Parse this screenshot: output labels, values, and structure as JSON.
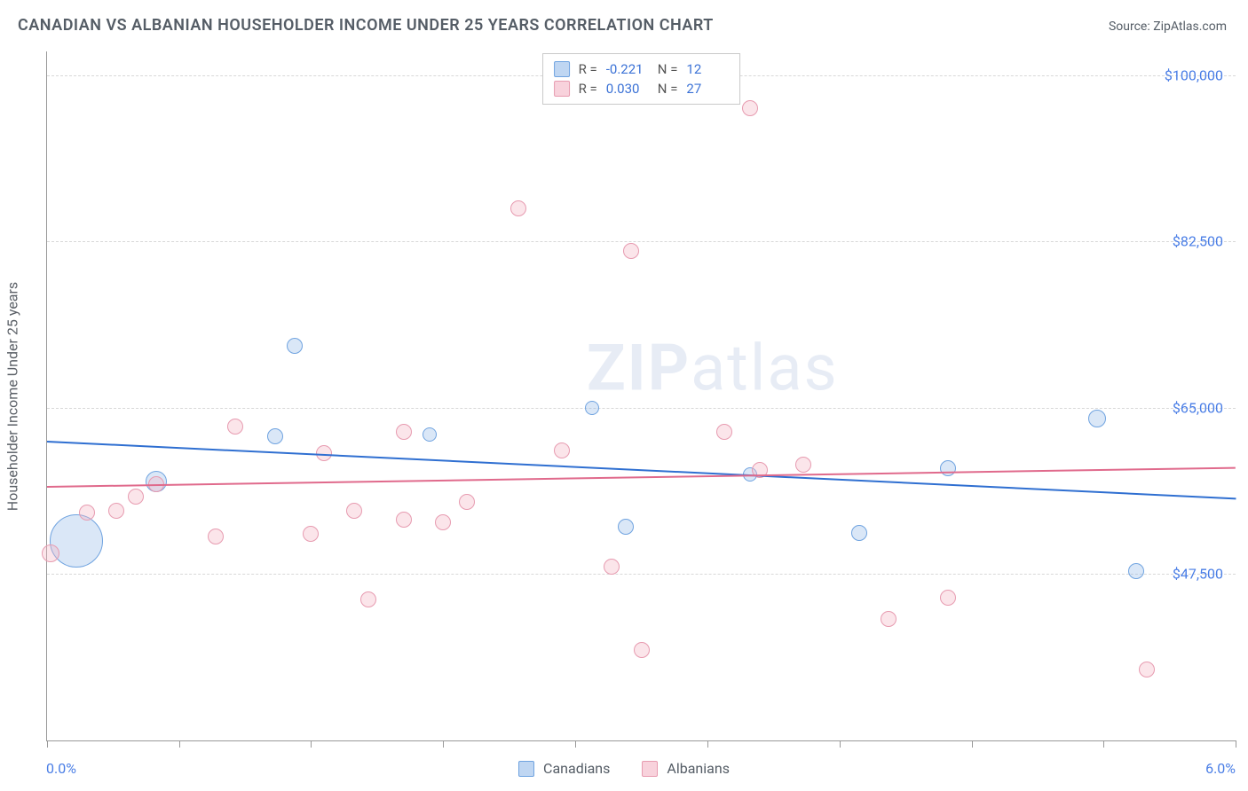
{
  "header": {
    "title": "CANADIAN VS ALBANIAN HOUSEHOLDER INCOME UNDER 25 YEARS CORRELATION CHART",
    "source": "Source: ZipAtlas.com"
  },
  "chart": {
    "type": "scatter",
    "ylabel": "Householder Income Under 25 years",
    "xlim": [
      0.0,
      6.0
    ],
    "ylim": [
      30000,
      102500
    ],
    "x_tick_labels": {
      "min": "0.0%",
      "max": "6.0%"
    },
    "x_ticks_pct": [
      0.0,
      0.667,
      1.333,
      2.0,
      2.667,
      3.333,
      4.0,
      4.667,
      5.333,
      6.0
    ],
    "y_grid": [
      {
        "value": 47500,
        "label": "$47,500"
      },
      {
        "value": 65000,
        "label": "$65,000"
      },
      {
        "value": 82500,
        "label": "$82,500"
      },
      {
        "value": 100000,
        "label": "$100,000"
      }
    ],
    "background_color": "#ffffff",
    "grid_color": "#d8d8d8",
    "axis_color": "#999999",
    "text_color": "#555d66",
    "value_color": "#4a7ee6",
    "watermark": {
      "strong": "ZIP",
      "rest": "atlas"
    },
    "series": [
      {
        "name": "Canadians",
        "fill": "rgba(148,187,233,0.35)",
        "stroke": "#6fa3e0",
        "trend_color": "#2f6fd1",
        "R": "-0.221",
        "N": "12",
        "trend": {
          "y_at_xmin": 61500,
          "y_at_xmax": 55500
        },
        "points": [
          {
            "x": 0.15,
            "y": 51000,
            "r": 30
          },
          {
            "x": 0.55,
            "y": 57200,
            "r": 12
          },
          {
            "x": 1.15,
            "y": 62000,
            "r": 9
          },
          {
            "x": 1.25,
            "y": 71500,
            "r": 9
          },
          {
            "x": 1.93,
            "y": 62200,
            "r": 8
          },
          {
            "x": 2.75,
            "y": 65000,
            "r": 8
          },
          {
            "x": 2.92,
            "y": 52500,
            "r": 9
          },
          {
            "x": 3.55,
            "y": 58000,
            "r": 8
          },
          {
            "x": 4.1,
            "y": 51800,
            "r": 9
          },
          {
            "x": 4.55,
            "y": 58600,
            "r": 9
          },
          {
            "x": 5.3,
            "y": 63900,
            "r": 10
          },
          {
            "x": 5.5,
            "y": 47800,
            "r": 9
          }
        ]
      },
      {
        "name": "Albanians",
        "fill": "rgba(244,180,196,0.35)",
        "stroke": "#e79bb0",
        "trend_color": "#e06a8c",
        "R": "0.030",
        "N": "27",
        "trend": {
          "y_at_xmin": 56800,
          "y_at_xmax": 58800
        },
        "points": [
          {
            "x": 0.02,
            "y": 49700,
            "r": 10
          },
          {
            "x": 0.2,
            "y": 54000,
            "r": 9
          },
          {
            "x": 0.35,
            "y": 54200,
            "r": 9
          },
          {
            "x": 0.45,
            "y": 55700,
            "r": 9
          },
          {
            "x": 0.55,
            "y": 57000,
            "r": 9
          },
          {
            "x": 0.85,
            "y": 51500,
            "r": 9
          },
          {
            "x": 0.95,
            "y": 63000,
            "r": 9
          },
          {
            "x": 1.33,
            "y": 51700,
            "r": 9
          },
          {
            "x": 1.4,
            "y": 60200,
            "r": 9
          },
          {
            "x": 1.55,
            "y": 54200,
            "r": 9
          },
          {
            "x": 1.62,
            "y": 44800,
            "r": 9
          },
          {
            "x": 1.8,
            "y": 62500,
            "r": 9
          },
          {
            "x": 1.8,
            "y": 53200,
            "r": 9
          },
          {
            "x": 2.0,
            "y": 53000,
            "r": 9
          },
          {
            "x": 2.12,
            "y": 55100,
            "r": 9
          },
          {
            "x": 2.38,
            "y": 86000,
            "r": 9
          },
          {
            "x": 2.6,
            "y": 60500,
            "r": 9
          },
          {
            "x": 2.85,
            "y": 48300,
            "r": 9
          },
          {
            "x": 2.95,
            "y": 81500,
            "r": 9
          },
          {
            "x": 3.0,
            "y": 39500,
            "r": 9
          },
          {
            "x": 3.42,
            "y": 62500,
            "r": 9
          },
          {
            "x": 3.55,
            "y": 96500,
            "r": 9
          },
          {
            "x": 3.6,
            "y": 58500,
            "r": 9
          },
          {
            "x": 3.82,
            "y": 59000,
            "r": 9
          },
          {
            "x": 4.25,
            "y": 42800,
            "r": 9
          },
          {
            "x": 4.55,
            "y": 45000,
            "r": 9
          },
          {
            "x": 5.55,
            "y": 37500,
            "r": 9
          }
        ]
      }
    ],
    "legend_labels": {
      "r": "R =",
      "n": "N ="
    }
  }
}
